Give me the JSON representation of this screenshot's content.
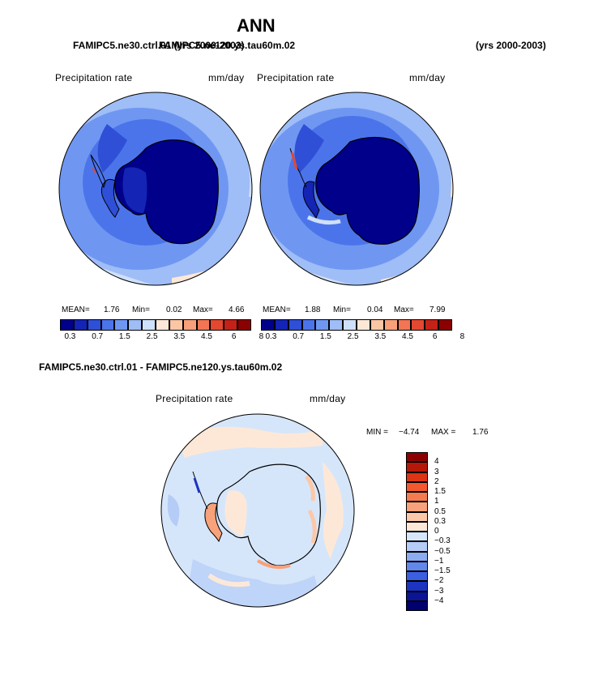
{
  "figure": {
    "title": "ANN",
    "left_case": "FAMIPC5.ne30.ctrl.01 (yrs 2000-2003)",
    "right_case": "FAMIPC5.ne120.ys.tau60m.02",
    "right_years": "(yrs 2000-2003)",
    "diff_title": "FAMIPC5.ne30.ctrl.01 - FAMIPC5.ne120.ys.tau60m.02"
  },
  "left_panel": {
    "field": "Precipitation rate",
    "units": "mm/day",
    "mean_label": "MEAN=",
    "mean": "1.76",
    "min_label": "Min=",
    "min": "0.02",
    "max_label": "Max=",
    "max": "4.66"
  },
  "right_panel": {
    "field": "Precipitation rate",
    "units": "mm/day",
    "mean_label": "MEAN=",
    "mean": "1.88",
    "min_label": "Min=",
    "min": "0.04",
    "max_label": "Max=",
    "max": "7.99"
  },
  "diff_panel": {
    "field": "Precipitation rate",
    "units": "mm/day",
    "min_label": "MIN =",
    "min": "−4.74",
    "max_label": "MAX =",
    "max": "1.76"
  },
  "colorbar": {
    "colors": [
      "#00008b",
      "#1424b4",
      "#2f4fd6",
      "#4c74ea",
      "#6f97f2",
      "#9fbdf6",
      "#cfe0fb",
      "#fde8d8",
      "#fbc6a4",
      "#f7a07a",
      "#f37554",
      "#e44830",
      "#c42218",
      "#8b0000"
    ],
    "ticks": [
      "0.3",
      "0.7",
      "1.5",
      "2.5",
      "3.5",
      "4.5",
      "6",
      "8"
    ]
  },
  "diff_colorbar": {
    "colors": [
      "#8b0000",
      "#b51808",
      "#dc3414",
      "#f4582e",
      "#f47c50",
      "#f7a27a",
      "#fbc8a8",
      "#fde8d8",
      "#d6e6fa",
      "#b4ccf6",
      "#8cacf2",
      "#6288ec",
      "#3c5fe0",
      "#1c34c0",
      "#0a1494",
      "#00006e"
    ],
    "ticks": [
      "4",
      "3",
      "2",
      "1.5",
      "1",
      "0.5",
      "0.3",
      "0",
      "−0.3",
      "−0.5",
      "−1",
      "−1.5",
      "−2",
      "−3",
      "−4"
    ]
  },
  "map_colors": {
    "ocean_light": "#6f97f2",
    "ocean_mid": "#4c74ea",
    "ocean_pale": "#9fbdf6",
    "land_dark": "#00008b",
    "land_mid": "#1424b4",
    "warm_pale": "#fde8d8",
    "diff_base": "#d6e6fa",
    "diff_warm": "#fbc8a8"
  }
}
